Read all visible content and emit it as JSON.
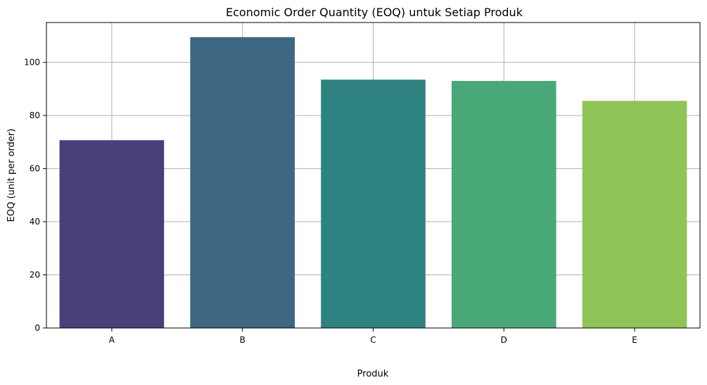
{
  "chart_data": {
    "type": "bar",
    "title": "Economic Order Quantity (EOQ) untuk Setiap Produk",
    "xlabel": "Produk",
    "ylabel": "EOQ (unit per order)",
    "categories": [
      "A",
      "B",
      "C",
      "D",
      "E"
    ],
    "values": [
      70.7,
      109.5,
      93.5,
      93.0,
      85.5
    ],
    "colors": [
      "#4a3f7a",
      "#3d6783",
      "#2e8380",
      "#48a878",
      "#8fc456"
    ],
    "ylim": [
      0,
      115
    ],
    "yticks": [
      0,
      20,
      40,
      60,
      80,
      100
    ],
    "grid": true
  }
}
